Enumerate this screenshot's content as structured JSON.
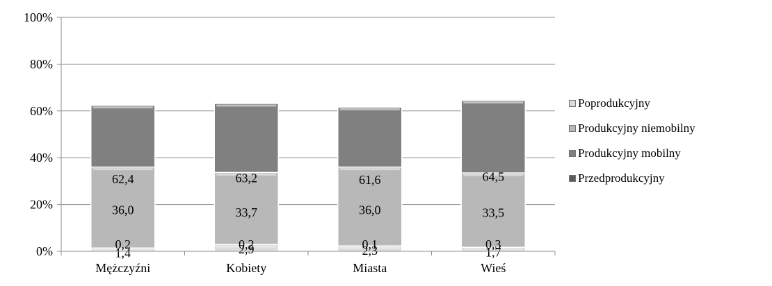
{
  "chart_data": {
    "type": "bar",
    "stacked": true,
    "categories": [
      "Mężczyźni",
      "Kobiety",
      "Miasta",
      "Wieś"
    ],
    "series": [
      {
        "name": "Przedprodukcyjny",
        "values": [
          0.2,
          0.2,
          0.1,
          0.3
        ],
        "labels": [
          "0,2",
          "0,2",
          "0,1",
          "0,3"
        ],
        "color": "#6e6e6e"
      },
      {
        "name": "Produkcyjny mobilny",
        "values": [
          62.4,
          63.2,
          61.6,
          64.5
        ],
        "labels": [
          "62,4",
          "63,2",
          "61,6",
          "64,5"
        ],
        "color": "#808080"
      },
      {
        "name": "Produkcyjny niemobilny",
        "values": [
          36.0,
          33.7,
          36.0,
          33.5
        ],
        "labels": [
          "36,0",
          "33,7",
          "36,0",
          "33,5"
        ],
        "color": "#b8b8b8"
      },
      {
        "name": "Poprodukcyjny",
        "values": [
          1.4,
          2.9,
          2.3,
          1.7
        ],
        "labels": [
          "1,4",
          "2,9",
          "2,3",
          "1,7"
        ],
        "color": "#dcdcdc"
      }
    ],
    "yticks": [
      "0%",
      "20%",
      "40%",
      "60%",
      "80%",
      "100%"
    ],
    "ylim": [
      0,
      100
    ],
    "grid": true,
    "legend_position": "right"
  }
}
